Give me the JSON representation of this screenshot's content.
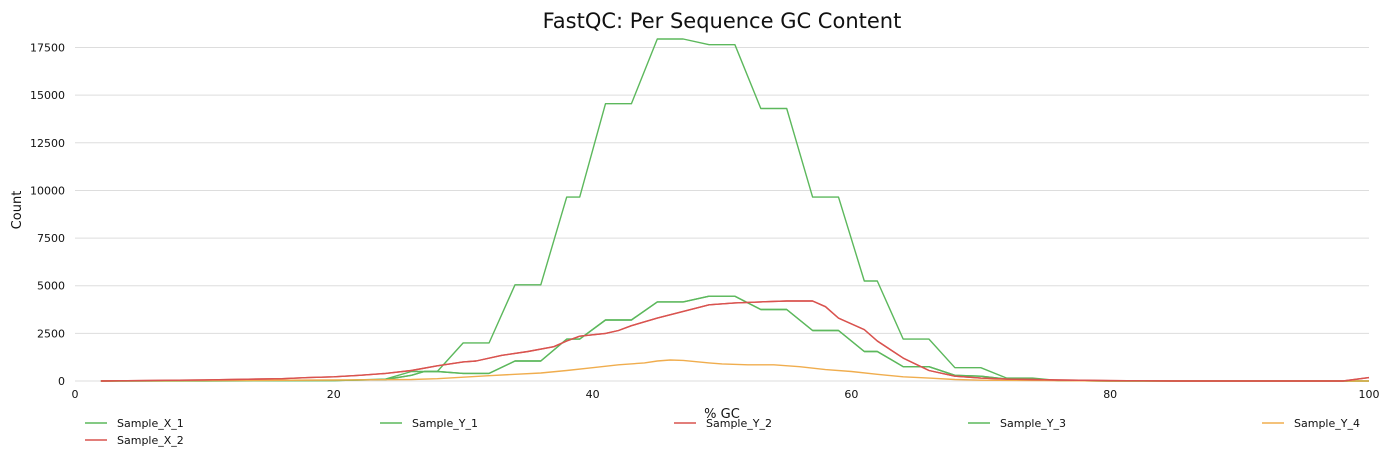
{
  "chart_data": {
    "type": "line",
    "title": "FastQC: Per Sequence GC Content",
    "xlabel": "% GC",
    "ylabel": "Count",
    "xlim": [
      0,
      100
    ],
    "ylim": [
      0,
      18000
    ],
    "xticks": [
      0,
      20,
      40,
      60,
      80,
      100
    ],
    "yticks": [
      0,
      2500,
      5000,
      7500,
      10000,
      12500,
      15000,
      17500
    ],
    "grid": "horizontal",
    "legend_position": "bottom",
    "series": [
      {
        "name": "Sample_X_1",
        "color": "#5cb85c",
        "points": [
          [
            2,
            0
          ],
          [
            10,
            0
          ],
          [
            20,
            20
          ],
          [
            24,
            80
          ],
          [
            26,
            300
          ],
          [
            27,
            500
          ],
          [
            28,
            500
          ],
          [
            30,
            400
          ],
          [
            32,
            400
          ],
          [
            34,
            1050
          ],
          [
            36,
            1050
          ],
          [
            38,
            2200
          ],
          [
            39,
            2200
          ],
          [
            41,
            3200
          ],
          [
            43,
            3200
          ],
          [
            45,
            4150
          ],
          [
            47,
            4150
          ],
          [
            49,
            4450
          ],
          [
            51,
            4450
          ],
          [
            53,
            3750
          ],
          [
            55,
            3750
          ],
          [
            57,
            2650
          ],
          [
            59,
            2650
          ],
          [
            61,
            1550
          ],
          [
            62,
            1550
          ],
          [
            64,
            750
          ],
          [
            66,
            750
          ],
          [
            68,
            300
          ],
          [
            70,
            250
          ],
          [
            72,
            100
          ],
          [
            74,
            100
          ],
          [
            76,
            20
          ],
          [
            80,
            0
          ],
          [
            100,
            0
          ]
        ]
      },
      {
        "name": "Sample_Y_1",
        "color": "#5cb85c",
        "points": [
          [
            2,
            0
          ],
          [
            20,
            20
          ],
          [
            24,
            100
          ],
          [
            26,
            500
          ],
          [
            28,
            500
          ],
          [
            30,
            2000
          ],
          [
            32,
            2000
          ],
          [
            34,
            5050
          ],
          [
            36,
            5050
          ],
          [
            38,
            9650
          ],
          [
            39,
            9650
          ],
          [
            41,
            14550
          ],
          [
            43,
            14550
          ],
          [
            45,
            17950
          ],
          [
            47,
            17950
          ],
          [
            49,
            17650
          ],
          [
            51,
            17650
          ],
          [
            53,
            14300
          ],
          [
            55,
            14300
          ],
          [
            57,
            9650
          ],
          [
            59,
            9650
          ],
          [
            61,
            5250
          ],
          [
            62,
            5250
          ],
          [
            64,
            2200
          ],
          [
            66,
            2200
          ],
          [
            68,
            700
          ],
          [
            70,
            700
          ],
          [
            72,
            150
          ],
          [
            74,
            150
          ],
          [
            76,
            20
          ],
          [
            80,
            0
          ],
          [
            100,
            0
          ]
        ]
      },
      {
        "name": "Sample_Y_2",
        "color": "#d9534f",
        "points": [
          [
            2,
            0
          ],
          [
            10,
            60
          ],
          [
            16,
            120
          ],
          [
            18,
            180
          ],
          [
            20,
            220
          ],
          [
            22,
            300
          ],
          [
            24,
            400
          ],
          [
            26,
            550
          ],
          [
            28,
            800
          ],
          [
            30,
            1000
          ],
          [
            31,
            1050
          ],
          [
            33,
            1350
          ],
          [
            35,
            1550
          ],
          [
            37,
            1800
          ],
          [
            38,
            2100
          ],
          [
            39,
            2350
          ],
          [
            41,
            2500
          ],
          [
            42,
            2650
          ],
          [
            43,
            2900
          ],
          [
            45,
            3300
          ],
          [
            47,
            3650
          ],
          [
            49,
            4000
          ],
          [
            51,
            4100
          ],
          [
            53,
            4150
          ],
          [
            55,
            4200
          ],
          [
            57,
            4200
          ],
          [
            58,
            3900
          ],
          [
            59,
            3300
          ],
          [
            61,
            2700
          ],
          [
            62,
            2100
          ],
          [
            64,
            1200
          ],
          [
            66,
            550
          ],
          [
            68,
            250
          ],
          [
            70,
            150
          ],
          [
            72,
            100
          ],
          [
            76,
            50
          ],
          [
            80,
            20
          ],
          [
            85,
            0
          ],
          [
            98,
            0
          ],
          [
            100,
            180
          ]
        ]
      },
      {
        "name": "Sample_Y_3",
        "color": "#5cb85c",
        "points": [
          [
            2,
            0
          ],
          [
            20,
            20
          ],
          [
            24,
            80
          ],
          [
            26,
            300
          ],
          [
            27,
            500
          ],
          [
            28,
            500
          ],
          [
            30,
            400
          ],
          [
            32,
            400
          ],
          [
            34,
            1050
          ],
          [
            36,
            1050
          ],
          [
            38,
            2200
          ],
          [
            39,
            2200
          ],
          [
            41,
            3200
          ],
          [
            43,
            3200
          ],
          [
            45,
            4150
          ],
          [
            47,
            4150
          ],
          [
            49,
            4450
          ],
          [
            51,
            4450
          ],
          [
            53,
            3750
          ],
          [
            55,
            3750
          ],
          [
            57,
            2650
          ],
          [
            59,
            2650
          ],
          [
            61,
            1550
          ],
          [
            62,
            1550
          ],
          [
            64,
            750
          ],
          [
            66,
            750
          ],
          [
            68,
            300
          ],
          [
            70,
            250
          ],
          [
            72,
            100
          ],
          [
            74,
            100
          ],
          [
            76,
            20
          ],
          [
            80,
            0
          ],
          [
            100,
            0
          ]
        ]
      },
      {
        "name": "Sample_Y_4",
        "color": "#f0ad4e",
        "points": [
          [
            2,
            0
          ],
          [
            10,
            20
          ],
          [
            20,
            50
          ],
          [
            26,
            80
          ],
          [
            28,
            120
          ],
          [
            30,
            200
          ],
          [
            32,
            280
          ],
          [
            34,
            350
          ],
          [
            36,
            420
          ],
          [
            38,
            550
          ],
          [
            40,
            700
          ],
          [
            42,
            850
          ],
          [
            44,
            950
          ],
          [
            45,
            1050
          ],
          [
            46,
            1100
          ],
          [
            47,
            1080
          ],
          [
            49,
            950
          ],
          [
            50,
            900
          ],
          [
            52,
            850
          ],
          [
            54,
            850
          ],
          [
            56,
            750
          ],
          [
            58,
            600
          ],
          [
            60,
            500
          ],
          [
            62,
            350
          ],
          [
            64,
            220
          ],
          [
            66,
            150
          ],
          [
            68,
            80
          ],
          [
            70,
            40
          ],
          [
            75,
            20
          ],
          [
            80,
            0
          ],
          [
            100,
            0
          ]
        ]
      },
      {
        "name": "Sample_X_2",
        "color": "#d9534f",
        "points": [
          [
            2,
            0
          ],
          [
            10,
            60
          ],
          [
            16,
            120
          ],
          [
            18,
            180
          ],
          [
            20,
            220
          ],
          [
            22,
            300
          ],
          [
            24,
            400
          ],
          [
            26,
            550
          ],
          [
            28,
            800
          ],
          [
            30,
            1000
          ],
          [
            31,
            1050
          ],
          [
            33,
            1350
          ],
          [
            35,
            1550
          ],
          [
            37,
            1800
          ],
          [
            38,
            2100
          ],
          [
            39,
            2350
          ],
          [
            41,
            2500
          ],
          [
            42,
            2650
          ],
          [
            43,
            2900
          ],
          [
            45,
            3300
          ],
          [
            47,
            3650
          ],
          [
            49,
            4000
          ],
          [
            51,
            4100
          ],
          [
            53,
            4150
          ],
          [
            55,
            4200
          ],
          [
            57,
            4200
          ],
          [
            58,
            3900
          ],
          [
            59,
            3300
          ],
          [
            61,
            2700
          ],
          [
            62,
            2100
          ],
          [
            64,
            1200
          ],
          [
            66,
            550
          ],
          [
            68,
            250
          ],
          [
            70,
            150
          ],
          [
            72,
            100
          ],
          [
            76,
            50
          ],
          [
            80,
            20
          ],
          [
            85,
            0
          ],
          [
            98,
            0
          ],
          [
            100,
            180
          ]
        ]
      }
    ]
  }
}
